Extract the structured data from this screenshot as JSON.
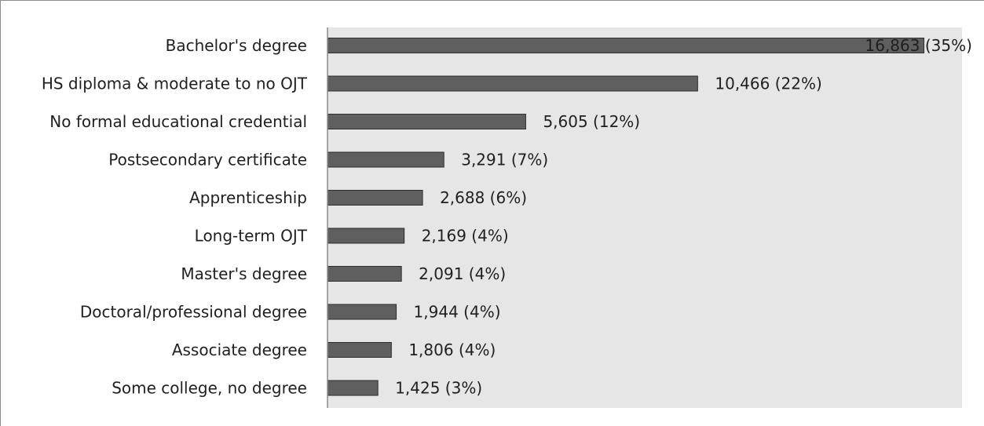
{
  "chart_data": {
    "type": "bar",
    "orientation": "horizontal",
    "title": "",
    "xlabel": "",
    "ylabel": "",
    "categories": [
      "Bachelor's degree",
      "HS diploma & moderate to no OJT",
      "No formal educational credential",
      "Postsecondary certificate",
      "Apprenticeship",
      "Long-term OJT",
      "Master's degree",
      "Doctoral/professional degree",
      "Associate degree",
      "Some college, no degree"
    ],
    "values": [
      16863,
      10466,
      5605,
      3291,
      2688,
      2169,
      2091,
      1944,
      1806,
      1425
    ],
    "data_labels": [
      "16,863 (35%)",
      "10,466 (22%)",
      "5,605 (12%)",
      "3,291 (7%)",
      "2,688 (6%)",
      "2,169 (4%)",
      "2,091 (4%)",
      "1,944 (4%)",
      "1,806 (4%)",
      "1,425 (3%)"
    ],
    "xlim": [
      0,
      18000
    ],
    "grid": false,
    "legend": "none",
    "colors": {
      "bar_fill": "#5f5f5f",
      "bar_stroke": "#2e2e2e",
      "plot_background": "#e6e6e6",
      "axis_line": "#8c8c8c"
    }
  }
}
